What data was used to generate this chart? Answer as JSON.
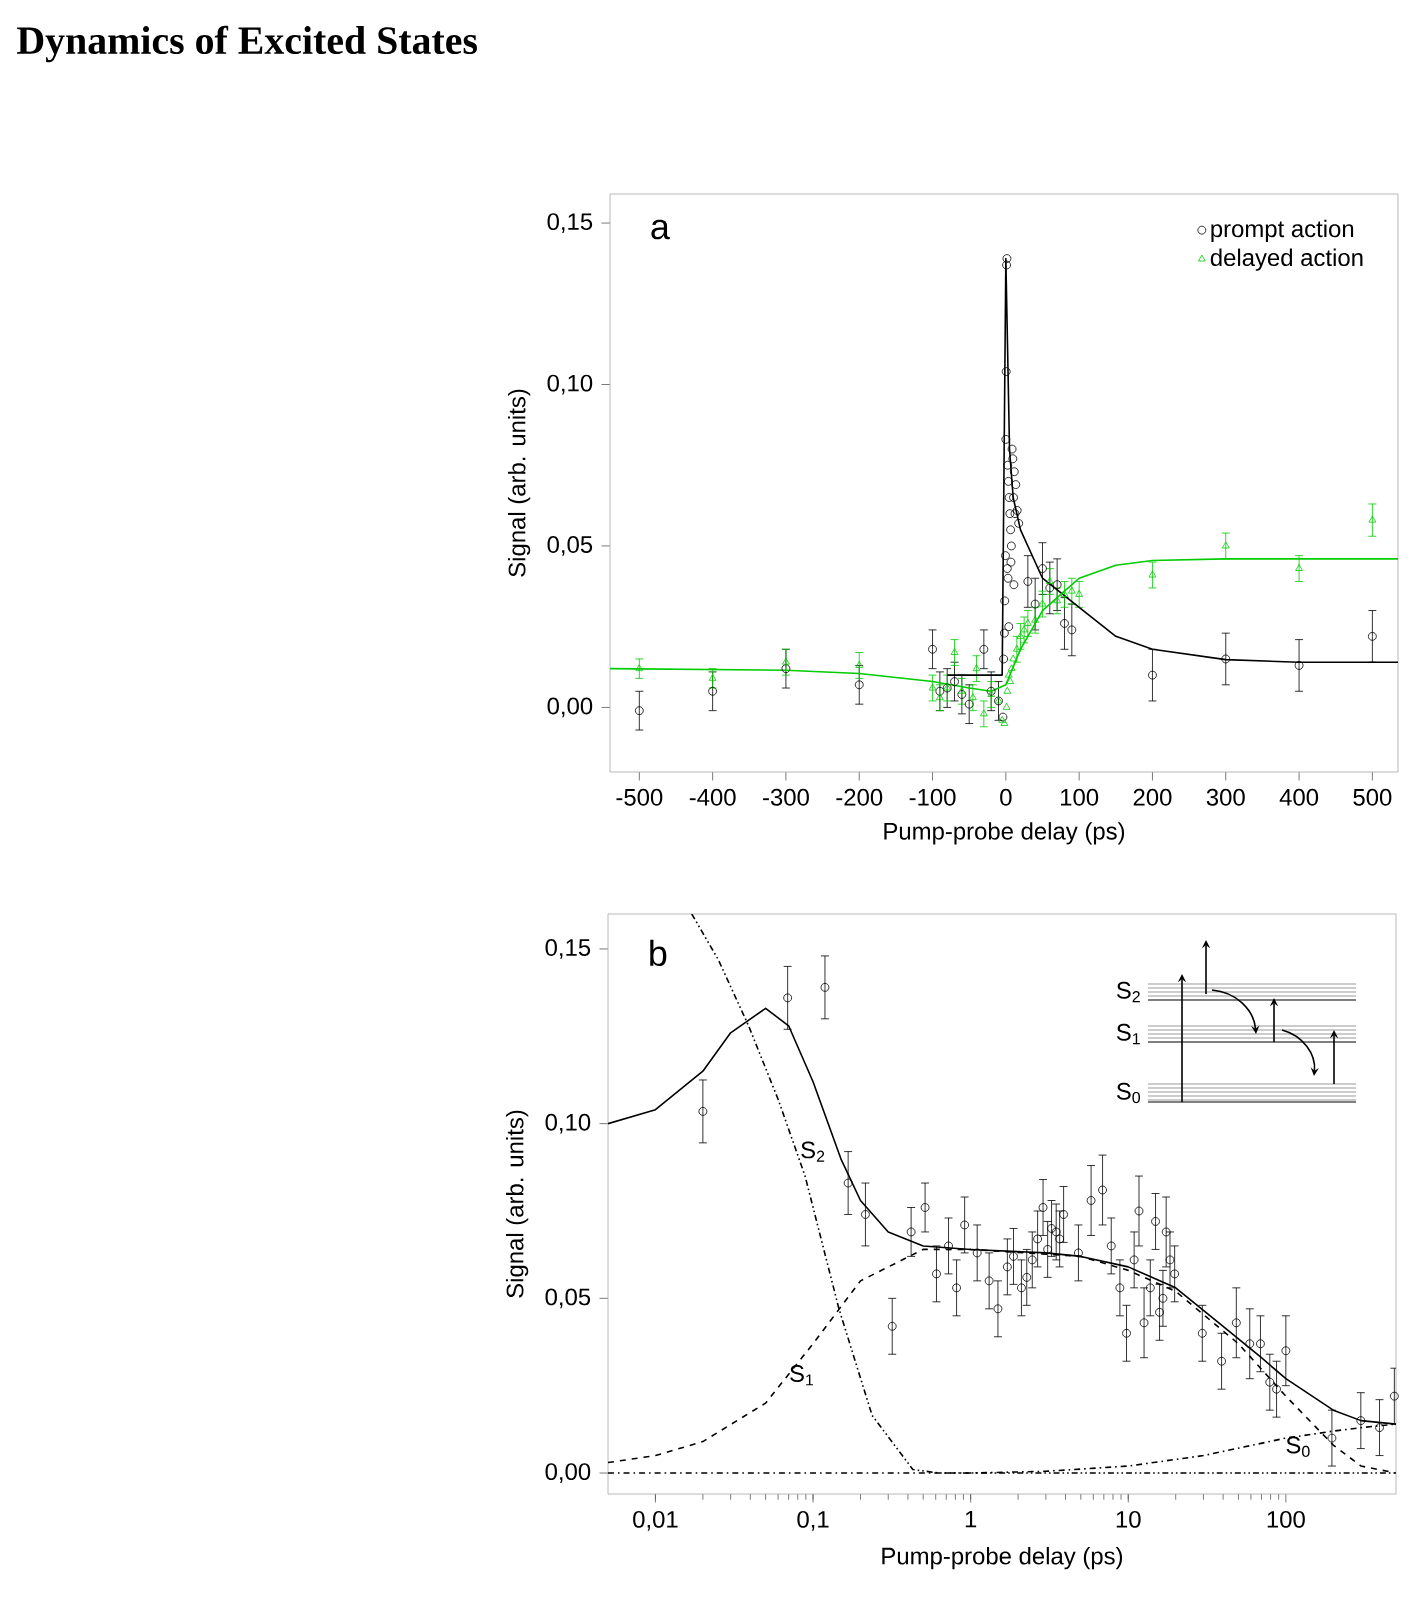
{
  "chart_data": [
    {
      "type": "scatter",
      "title": "Dynamics of Excited States",
      "xlabel": "Pump-probe delay (ps)",
      "ylabel": "Signal (arb. units)",
      "xlim": [
        -540,
        535
      ],
      "ylim": [
        -0.02,
        0.159
      ],
      "xticks": [
        -500,
        -400,
        -300,
        -200,
        -100,
        0,
        100,
        200,
        300,
        400,
        500
      ],
      "yticks": [
        {
          "value": 0,
          "label": "0,00"
        },
        {
          "value": 0.05,
          "label": "0,05"
        },
        {
          "value": 0.1,
          "label": "0,10"
        },
        {
          "value": 0.15,
          "label": "0,15"
        }
      ],
      "legend": "top right",
      "annotations": [
        "a"
      ],
      "series": [
        {
          "name": "prompt action",
          "type": "scatter",
          "marker": "circle",
          "color": "#000000",
          "x": [
            -500,
            -400,
            -300,
            -200,
            -100,
            -90,
            -80,
            -70,
            -60,
            -50,
            -30,
            -20,
            -10,
            -2,
            -1.5,
            -0.5,
            0.5,
            1,
            1.5,
            0,
            2.5,
            3.5,
            4.5,
            5.5,
            6.5,
            7.5,
            2,
            3,
            8.5,
            9.5,
            11.5,
            13.5,
            15.5,
            17.5,
            10.5,
            12.5,
            7,
            11,
            4,
            -3,
            -4,
            30,
            40,
            50,
            60,
            70,
            80,
            90,
            200,
            300,
            400,
            500
          ],
          "values": [
            -0.001,
            0.005,
            0.012,
            0.007,
            0.018,
            0.005,
            0.006,
            0.008,
            0.004,
            0.001,
            0.018,
            0.005,
            0.002,
            0.023,
            0.033,
            0.047,
            0.104,
            0.137,
            0.139,
            0.083,
            0.075,
            0.07,
            0.065,
            0.06,
            0.055,
            0.05,
            0.043,
            0.04,
            0.08,
            0.077,
            0.073,
            0.069,
            0.061,
            0.057,
            0.065,
            0.06,
            0.045,
            0.038,
            0.025,
            0.015,
            -0.003,
            0.039,
            0.032,
            0.043,
            0.037,
            0.038,
            0.026,
            0.024,
            0.01,
            0.015,
            0.013,
            0.022
          ],
          "errors": [
            0.006,
            0.006,
            0.006,
            0.006,
            0.006,
            0.006,
            0.006,
            0.006,
            0.006,
            0.006,
            0.006,
            0.006,
            0.006,
            null,
            null,
            null,
            null,
            null,
            null,
            null,
            null,
            null,
            null,
            null,
            null,
            null,
            null,
            null,
            null,
            null,
            null,
            null,
            null,
            null,
            null,
            null,
            null,
            null,
            null,
            null,
            null,
            0.008,
            0.008,
            0.008,
            0.008,
            0.008,
            0.008,
            0.008,
            0.008,
            0.008,
            0.008,
            0.008
          ]
        },
        {
          "name": "delayed action",
          "type": "scatter",
          "marker": "triangle",
          "color": "#00cc00",
          "x": [
            -500,
            -400,
            -300,
            -200,
            -100,
            -90,
            -80,
            -70,
            -60,
            -45,
            -40,
            -30,
            -20,
            -10,
            -5,
            -2,
            1,
            2,
            4,
            6,
            8,
            10,
            15,
            20,
            25,
            30,
            40,
            50,
            60,
            70,
            80,
            90,
            100,
            200,
            300,
            400,
            500
          ],
          "values": [
            0.012,
            0.009,
            0.014,
            0.013,
            0.006,
            0.003,
            0.006,
            0.017,
            0.005,
            0.003,
            0.012,
            -0.002,
            0.004,
            0.002,
            -0.004,
            -0.005,
            0.0,
            0.005,
            0.01,
            0.008,
            0.012,
            0.015,
            0.018,
            0.022,
            0.024,
            0.026,
            0.027,
            0.032,
            0.039,
            0.033,
            0.035,
            0.036,
            0.035,
            0.041,
            0.05,
            0.043,
            0.058
          ],
          "errors": [
            0.003,
            0.003,
            0.004,
            0.004,
            0.004,
            0.004,
            0.004,
            0.004,
            0.004,
            0.004,
            0.004,
            0.004,
            0.004,
            null,
            null,
            null,
            null,
            null,
            null,
            null,
            null,
            null,
            0.004,
            0.004,
            0.004,
            0.004,
            0.004,
            0.004,
            0.004,
            0.004,
            0.004,
            0.004,
            0.004,
            0.004,
            0.004,
            0.004,
            0.005
          ]
        },
        {
          "type": "line",
          "marker": "none",
          "color": "#000000",
          "x": [
            -80,
            -5,
            0,
            5,
            10,
            20,
            50,
            100,
            150,
            200,
            300,
            400,
            535
          ],
          "values": [
            0.01,
            0.01,
            0.139,
            0.08,
            0.065,
            0.055,
            0.04,
            0.031,
            0.022,
            0.018,
            0.0148,
            0.014,
            0.014
          ]
        },
        {
          "type": "line",
          "marker": "none",
          "color": "#00cc00",
          "x": [
            -540,
            -300,
            -200,
            -100,
            -50,
            -20,
            0,
            20,
            50,
            80,
            100,
            150,
            200,
            300,
            535
          ],
          "values": [
            0.012,
            0.0115,
            0.0105,
            0.008,
            0.006,
            0.005,
            0.007,
            0.018,
            0.03,
            0.036,
            0.04,
            0.044,
            0.0455,
            0.046,
            0.046
          ]
        }
      ]
    },
    {
      "type": "scatter",
      "xlabel": "Pump-probe delay (ps)",
      "ylabel": "Signal (arb. units)",
      "log": "x",
      "xlim": [
        0.005,
        500
      ],
      "ylim": [
        -0.006,
        0.16
      ],
      "xticks": [
        {
          "value": 0.01,
          "label": "0,01"
        },
        {
          "value": 0.1,
          "label": "0,1"
        },
        1,
        10,
        100
      ],
      "yticks": [
        {
          "value": 0,
          "label": "0,00"
        },
        {
          "value": 0.05,
          "label": "0,05"
        },
        {
          "value": 0.1,
          "label": "0,10"
        },
        {
          "value": 0.15,
          "label": "0,15"
        }
      ],
      "annotations": [
        "b",
        "S$_{2}$",
        "S$_{1}$",
        "S$_{0}$"
      ],
      "series": [
        {
          "type": "scatter",
          "marker": "circle",
          "color": "#000000",
          "x": [
            0.02,
            0.069,
            0.119,
            0.167,
            0.215,
            0.318,
            0.419,
            0.514,
            0.607,
            0.724,
            0.814,
            0.916,
            1.1,
            1.31,
            1.49,
            1.71,
            1.87,
            2.1,
            2.27,
            2.46,
            2.66,
            2.88,
            3.08,
            3.26,
            3.49,
            3.67,
            3.89,
            4.83,
            5.81,
            6.87,
            7.8,
            8.85,
            9.75,
            10.9,
            11.7,
            12.6,
            13.8,
            14.9,
            15.8,
            16.6,
            17.4,
            18.4,
            19.7,
            29.5,
            39.1,
            48.5,
            59,
            69,
            79.1,
            87.3,
            100,
            196,
            299,
            393,
            488
          ],
          "values": [
            0.1035,
            0.136,
            0.139,
            0.083,
            0.074,
            0.042,
            0.069,
            0.076,
            0.057,
            0.065,
            0.053,
            0.071,
            0.063,
            0.055,
            0.047,
            0.059,
            0.062,
            0.053,
            0.056,
            0.061,
            0.067,
            0.076,
            0.064,
            0.07,
            0.069,
            0.067,
            0.074,
            0.063,
            0.078,
            0.081,
            0.065,
            0.053,
            0.04,
            0.061,
            0.075,
            0.043,
            0.053,
            0.072,
            0.046,
            0.05,
            0.069,
            0.061,
            0.057,
            0.04,
            0.032,
            0.043,
            0.037,
            0.037,
            0.026,
            0.024,
            0.035,
            0.01,
            0.015,
            0.013,
            0.022
          ],
          "errors": [
            0.009,
            0.009,
            0.009,
            0.009,
            0.009,
            0.008,
            0.007,
            0.007,
            0.008,
            0.008,
            0.008,
            0.008,
            0.008,
            0.008,
            0.008,
            0.008,
            0.008,
            0.008,
            0.008,
            0.008,
            0.008,
            0.008,
            0.008,
            0.008,
            0.008,
            0.008,
            0.008,
            0.008,
            0.01,
            0.01,
            0.008,
            0.008,
            0.008,
            0.008,
            0.01,
            0.01,
            0.008,
            0.008,
            0.008,
            0.008,
            0.01,
            0.008,
            0.008,
            0.008,
            0.008,
            0.01,
            0.01,
            0.008,
            0.008,
            0.008,
            0.01,
            0.008,
            0.008,
            0.008,
            0.008
          ]
        },
        {
          "type": "line",
          "marker": "none",
          "line_style": "solid",
          "color": "#000000",
          "x": [
            0.005,
            0.01,
            0.02,
            0.03,
            0.05,
            0.07,
            0.1,
            0.15,
            0.2,
            0.3,
            0.5,
            1,
            3,
            5,
            10,
            20,
            40,
            70,
            100,
            200,
            300,
            500
          ],
          "values": [
            0.1,
            0.104,
            0.115,
            0.126,
            0.133,
            0.128,
            0.112,
            0.09,
            0.078,
            0.069,
            0.065,
            0.064,
            0.063,
            0.062,
            0.059,
            0.053,
            0.042,
            0.033,
            0.027,
            0.018,
            0.015,
            0.014
          ]
        },
        {
          "name": "S$_{2}$",
          "type": "line",
          "marker": "none",
          "line_style": "dotted",
          "color": "#000000",
          "x": [
            0.017,
            0.025,
            0.039,
            0.06,
            0.089,
            0.146,
            0.237,
            0.43,
            0.63,
            500
          ],
          "values": [
            0.16,
            0.147,
            0.128,
            0.107,
            0.085,
            0.047,
            0.0165,
            0.001,
            0,
            0
          ]
        },
        {
          "name": "S$_{1}$",
          "type": "line",
          "marker": "none",
          "line_style": "dashed",
          "color": "#000000",
          "x": [
            0.005,
            0.01,
            0.02,
            0.05,
            0.1,
            0.2,
            0.5,
            1,
            5,
            10,
            20,
            50,
            100,
            200,
            300,
            500
          ],
          "values": [
            0.003,
            0.005,
            0.009,
            0.02,
            0.037,
            0.055,
            0.064,
            0.064,
            0.062,
            0.058,
            0.052,
            0.037,
            0.022,
            0.008,
            0.002,
            0
          ]
        },
        {
          "name": "S$_{0}$",
          "type": "line",
          "marker": "none",
          "line_style": "dashdot",
          "color": "#000000",
          "x": [
            0.005,
            1,
            3,
            10,
            30,
            100,
            200,
            300,
            500
          ],
          "values": [
            0,
            0,
            0.0005,
            0.002,
            0.005,
            0.01,
            0.012,
            0.013,
            0.014
          ]
        }
      ]
    }
  ]
}
